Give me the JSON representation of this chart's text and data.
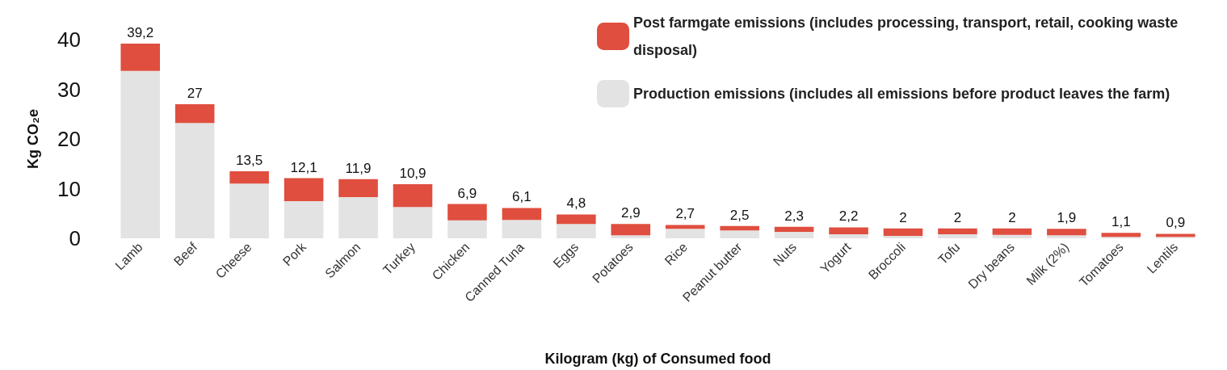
{
  "chart_data": {
    "type": "bar",
    "stacked": true,
    "xlabel": "Kilogram (kg) of Consumed food",
    "ylabel": "Kg CO₂e",
    "categories": [
      "Lamb",
      "Beef",
      "Cheese",
      "Pork",
      "Salmon",
      "Turkey",
      "Chicken",
      "Canned Tuna",
      "Eggs",
      "Potatoes",
      "Rice",
      "Peanut butter",
      "Nuts",
      "Yogurt",
      "Broccoli",
      "Tofu",
      "Dry beans",
      "Milk (2%)",
      "Tomatoes",
      "Lentils"
    ],
    "series": [
      {
        "name": "Production emissions (includes all emissions before product leaves the farm)",
        "color": "#e3e3e3",
        "values": [
          33.7,
          23.2,
          11.0,
          7.5,
          8.3,
          6.3,
          3.6,
          3.7,
          2.9,
          0.6,
          1.9,
          1.6,
          1.3,
          0.8,
          0.5,
          0.8,
          0.7,
          0.6,
          0.3,
          0.3
        ]
      },
      {
        "name": "Post farmgate emissions (includes processing, transport, retail, cooking waste disposal)",
        "color": "#e04e3f",
        "values": [
          5.5,
          3.8,
          2.5,
          4.6,
          3.6,
          4.6,
          3.3,
          2.4,
          1.9,
          2.3,
          0.8,
          0.9,
          1.0,
          1.4,
          1.5,
          1.2,
          1.3,
          1.3,
          0.8,
          0.6
        ]
      }
    ],
    "totals": [
      "39,2",
      "27",
      "13,5",
      "12,1",
      "11,9",
      "10,9",
      "6,9",
      "6,1",
      "4,8",
      "2,9",
      "2,7",
      "2,5",
      "2,3",
      "2,2",
      "2",
      "2",
      "2",
      "1,9",
      "1,1",
      "0,9"
    ],
    "ylim": [
      0,
      40
    ],
    "yticks": [
      0,
      10,
      20,
      30,
      40
    ],
    "grid": false,
    "legend": "top right"
  }
}
